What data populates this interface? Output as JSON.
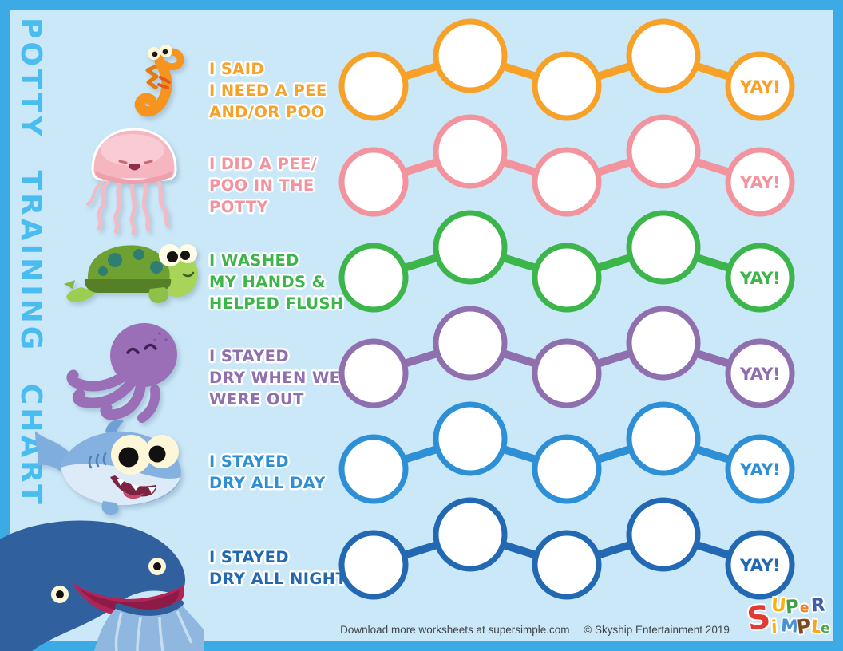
{
  "sidebar_title": "POTTY TRAINING CHART",
  "yay_label": "YAY!",
  "page_colors": {
    "border": "#3BAAE5",
    "background": "#CBE8F8",
    "sidebar_text": "#49BCF0"
  },
  "rows": [
    {
      "id": "i-said-i-need-a-pee",
      "animal": "seahorse-icon",
      "color": "#F7A128",
      "lines": [
        "I SAID",
        "I NEED A PEE",
        "AND/OR POO"
      ]
    },
    {
      "id": "i-did-a-pee-poo",
      "animal": "jellyfish-icon",
      "color": "#F2939E",
      "lines": [
        "I DID A PEE/",
        "POO IN THE",
        "POTTY"
      ]
    },
    {
      "id": "i-washed-my-hands",
      "animal": "turtle-icon",
      "color": "#3CB54A",
      "lines": [
        "I WASHED",
        "MY HANDS &",
        "HELPED FLUSH"
      ]
    },
    {
      "id": "i-stayed-dry-out",
      "animal": "octopus-icon",
      "color": "#8F6FAE",
      "lines": [
        "I STAYED",
        "DRY WHEN WE",
        "WERE OUT"
      ]
    },
    {
      "id": "i-stayed-dry-all-day",
      "animal": "shark-icon",
      "color": "#2D8FD5",
      "lines": [
        "I STAYED",
        "DRY ALL DAY"
      ]
    },
    {
      "id": "i-stayed-dry-all-night",
      "animal": "whale-icon",
      "color": "#2268B2",
      "lines": [
        "I STAYED",
        "DRY ALL NIGHT"
      ]
    }
  ],
  "footer": {
    "download_text": "Download more worksheets at supersimple.com",
    "copyright_text": "© Skyship Entertainment 2019"
  },
  "logo": {
    "word_top": "SUPeR",
    "word_bottom": "SiMPLe",
    "letter_colors_top": [
      "#E23B34",
      "#F9B211",
      "#3FA047",
      "#F47C20",
      "#3E5DA8"
    ],
    "letter_colors_bottom": [
      "#E23B34",
      "#F9B211",
      "#4A90D3",
      "#7C4A21",
      "#F6A81C",
      "#4FA54B"
    ]
  }
}
